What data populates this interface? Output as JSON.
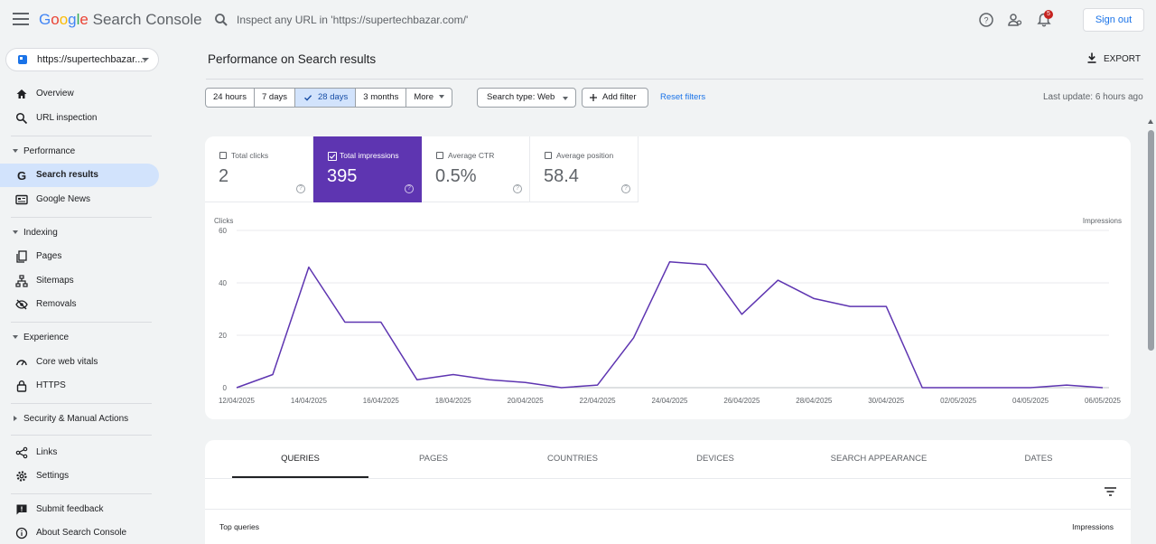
{
  "app": {
    "logo_parts": [
      "G",
      "o",
      "o",
      "g",
      "l",
      "e"
    ],
    "logo_rest": " Search Console",
    "search_placeholder": "Inspect any URL in 'https://supertechbazar.com/'",
    "signout_label": "Sign out",
    "notification_count": "5"
  },
  "sidebar": {
    "property": "https://supertechbazar....",
    "items": {
      "overview": "Overview",
      "url_inspection": "URL inspection",
      "performance": "Performance",
      "search_results": "Search results",
      "google_news": "Google News",
      "indexing": "Indexing",
      "pages": "Pages",
      "sitemaps": "Sitemaps",
      "removals": "Removals",
      "experience": "Experience",
      "core_web_vitals": "Core web vitals",
      "https": "HTTPS",
      "security": "Security & Manual Actions",
      "links": "Links",
      "settings": "Settings",
      "submit_feedback": "Submit feedback",
      "about": "About Search Console"
    }
  },
  "header": {
    "title": "Performance on Search results",
    "export_label": "EXPORT"
  },
  "filters": {
    "ranges": [
      "24 hours",
      "7 days",
      "28 days",
      "3 months",
      "More"
    ],
    "selected_range": "28 days",
    "search_type": "Search type: Web",
    "add_filter": "Add filter",
    "reset": "Reset filters",
    "last_update": "Last update: 6 hours ago"
  },
  "metrics": [
    {
      "label": "Total clicks",
      "value": "2",
      "selected": false
    },
    {
      "label": "Total impressions",
      "value": "395",
      "selected": true
    },
    {
      "label": "Average CTR",
      "value": "0.5%",
      "selected": false
    },
    {
      "label": "Average position",
      "value": "58.4",
      "selected": false
    }
  ],
  "chart_data": {
    "type": "line",
    "left_axis_label": "Clicks",
    "right_axis_label": "Impressions",
    "ylim": [
      0,
      60
    ],
    "yticks": [
      0,
      20,
      40,
      60
    ],
    "x_tick_labels": [
      "12/04/2025",
      "14/04/2025",
      "16/04/2025",
      "18/04/2025",
      "20/04/2025",
      "22/04/2025",
      "24/04/2025",
      "26/04/2025",
      "28/04/2025",
      "30/04/2025",
      "02/05/2025",
      "04/05/2025",
      "06/05/2025"
    ],
    "color": "#5e35b1",
    "series": [
      {
        "name": "Impressions",
        "x": [
          "12/04/2025",
          "13/04/2025",
          "14/04/2025",
          "15/04/2025",
          "16/04/2025",
          "17/04/2025",
          "18/04/2025",
          "19/04/2025",
          "20/04/2025",
          "21/04/2025",
          "22/04/2025",
          "23/04/2025",
          "24/04/2025",
          "25/04/2025",
          "26/04/2025",
          "27/04/2025",
          "28/04/2025",
          "29/04/2025",
          "30/04/2025",
          "01/05/2025",
          "02/05/2025",
          "03/05/2025",
          "04/05/2025",
          "05/05/2025",
          "06/05/2025"
        ],
        "values": [
          0,
          5,
          46,
          25,
          25,
          3,
          5,
          3,
          2,
          0,
          1,
          19,
          48,
          47,
          28,
          41,
          34,
          31,
          31,
          0,
          0,
          0,
          0,
          1,
          0
        ]
      }
    ]
  },
  "table": {
    "tabs": [
      "QUERIES",
      "PAGES",
      "COUNTRIES",
      "DEVICES",
      "SEARCH APPEARANCE",
      "DATES"
    ],
    "active_tab": "QUERIES",
    "col_left": "Top queries",
    "col_right": "Impressions"
  }
}
